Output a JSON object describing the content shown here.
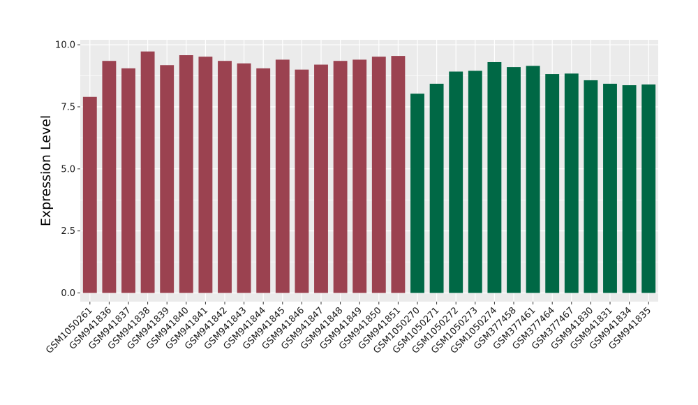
{
  "chart_data": {
    "type": "bar",
    "title": "",
    "xlabel": "",
    "ylabel": "Expression Level",
    "ylim": [
      -0.35,
      10.2
    ],
    "yticks": [
      0.0,
      2.5,
      5.0,
      7.5,
      10.0
    ],
    "ytick_labels": [
      "0.0",
      "2.5",
      "5.0",
      "7.5",
      "10.0"
    ],
    "grid": true,
    "legend": "none",
    "categories": [
      "GSM1050261",
      "GSM941836",
      "GSM941837",
      "GSM941838",
      "GSM941839",
      "GSM941840",
      "GSM941841",
      "GSM941842",
      "GSM941843",
      "GSM941844",
      "GSM941845",
      "GSM941846",
      "GSM941847",
      "GSM941848",
      "GSM941849",
      "GSM941850",
      "GSM941851",
      "GSM1050270",
      "GSM1050271",
      "GSM1050272",
      "GSM1050273",
      "GSM1050274",
      "GSM377458",
      "GSM377461",
      "GSM377464",
      "GSM377467",
      "GSM941830",
      "GSM941831",
      "GSM941834",
      "GSM941835"
    ],
    "values": [
      7.9,
      9.35,
      9.05,
      9.73,
      9.18,
      9.58,
      9.52,
      9.35,
      9.25,
      9.05,
      9.4,
      9.0,
      9.2,
      9.35,
      9.4,
      9.52,
      9.55,
      8.03,
      8.43,
      8.92,
      8.95,
      9.3,
      9.1,
      9.15,
      8.82,
      8.84,
      8.57,
      8.43,
      8.37,
      8.4
    ],
    "group_sizes": [
      17,
      13
    ],
    "colors": {
      "group1": "#9b4250",
      "group2": "#006845",
      "panel_bg": "#ebebeb",
      "grid": "#ffffff"
    }
  }
}
